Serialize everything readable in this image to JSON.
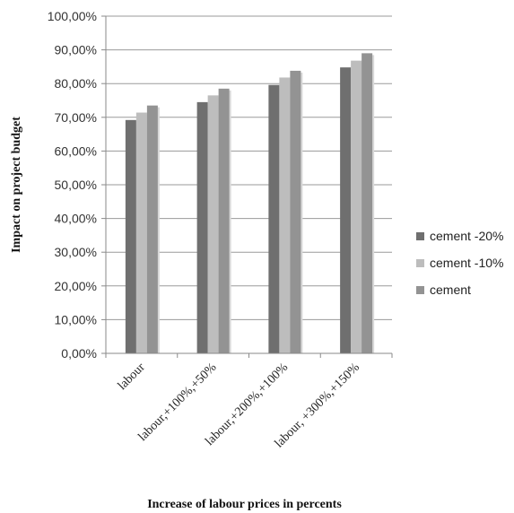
{
  "chart_data": {
    "type": "bar",
    "title": "",
    "xlabel": "Increase of labour prices in percents",
    "ylabel": "Impact on project budget",
    "categories": [
      "labour",
      "labour,+100%,+50%",
      "labour,+200%,+100%",
      "labour, +300%,+150%"
    ],
    "series": [
      {
        "name": "cement -20%",
        "values": [
          69.2,
          74.5,
          79.6,
          84.8
        ]
      },
      {
        "name": "cement -10%",
        "values": [
          71.4,
          76.5,
          81.8,
          86.8
        ]
      },
      {
        "name": "cement",
        "values": [
          73.5,
          78.5,
          83.8,
          89.0
        ]
      }
    ],
    "ylim": [
      0,
      100
    ],
    "ytick_values": [
      0,
      10,
      20,
      30,
      40,
      50,
      60,
      70,
      80,
      90,
      100
    ],
    "ytick_labels": [
      "0,00%",
      "10,00%",
      "20,00%",
      "30,00%",
      "40,00%",
      "50,00%",
      "60,00%",
      "70,00%",
      "80,00%",
      "90,00%",
      "100,00%"
    ],
    "grid": true,
    "legend_position": "right",
    "colors": [
      "#6f6f6f",
      "#bdbdbd",
      "#939393"
    ]
  }
}
